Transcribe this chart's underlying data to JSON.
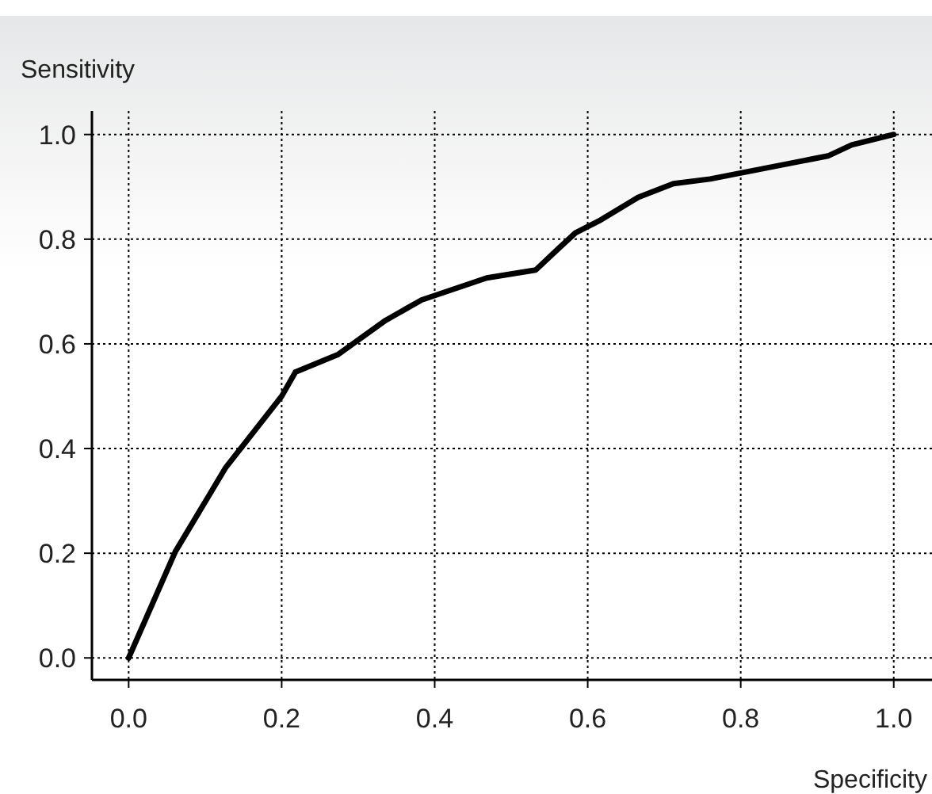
{
  "chart_data": {
    "type": "line",
    "xlabel": "Specificity",
    "ylabel": "Sensitivity",
    "x": [
      0,
      0.061,
      0.127,
      0.2,
      0.218,
      0.274,
      0.336,
      0.383,
      0.468,
      0.532,
      0.561,
      0.584,
      0.615,
      0.666,
      0.712,
      0.76,
      0.914,
      0.945,
      1
    ],
    "series": [
      {
        "color": "#000000",
        "values": [
          0,
          0.203,
          0.364,
          0.5,
          0.546,
          0.58,
          0.645,
          0.684,
          0.726,
          0.741,
          0.781,
          0.812,
          0.835,
          0.88,
          0.906,
          0.915,
          0.959,
          0.98,
          1
        ]
      }
    ],
    "xlim": [
      -0.048,
      1.05
    ],
    "ylim": [
      -0.042,
      1.045
    ],
    "xticks": [
      {
        "value": 0,
        "label": "0.0"
      },
      0.2,
      0.4,
      0.6,
      0.8,
      {
        "value": 1,
        "label": "1.0"
      }
    ],
    "yticks": [
      {
        "value": 0,
        "label": "0.0"
      },
      0.2,
      0.4,
      0.6,
      0.8,
      {
        "value": 1,
        "label": "1.0"
      }
    ],
    "grid": true,
    "line_style": "solid",
    "marker": "none"
  }
}
